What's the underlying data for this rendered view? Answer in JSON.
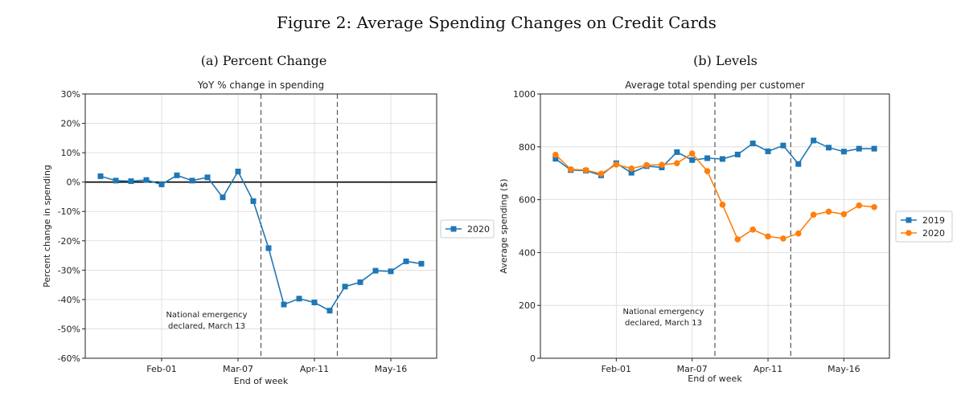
{
  "figure_title": "Figure 2: Average Spending Changes on Credit Cards",
  "chart_data": [
    {
      "caption": "(a) Percent Change",
      "type": "line",
      "title": "YoY % change in spending",
      "xlabel": "End of week",
      "ylabel": "Percent change in spending",
      "ylim": [
        -60,
        30
      ],
      "yticks": [
        -60,
        -50,
        -40,
        -30,
        -20,
        -10,
        0,
        10,
        20,
        30
      ],
      "ytick_labels": [
        "-60%",
        "-50%",
        "-40%",
        "-30%",
        "-20%",
        "-10%",
        "0%",
        "10%",
        "20%",
        "30%"
      ],
      "xticks": [
        "Feb-01",
        "Mar-07",
        "Apr-11",
        "May-16"
      ],
      "grid": true,
      "legend": "right",
      "annotation": [
        "National emergency",
        "declared, March 13"
      ],
      "series": [
        {
          "name": "2020",
          "color": "#1f77b4",
          "marker": "square",
          "x": [
            "Jan-04",
            "Jan-11",
            "Jan-18",
            "Jan-25",
            "Feb-01",
            "Feb-08",
            "Feb-15",
            "Feb-22",
            "Feb-29",
            "Mar-07",
            "Mar-14",
            "Mar-21",
            "Mar-28",
            "Apr-04",
            "Apr-11",
            "Apr-18",
            "Apr-25",
            "May-02",
            "May-09",
            "May-16",
            "May-23",
            "May-30"
          ],
          "values": [
            2.0,
            0.5,
            0.3,
            0.7,
            -0.8,
            2.3,
            0.5,
            1.6,
            -5.2,
            3.6,
            -6.5,
            -22.5,
            -41.7,
            -39.7,
            -41.0,
            -43.8,
            -35.6,
            -34.1,
            -30.2,
            -30.4,
            -27.0,
            -27.8
          ]
        }
      ]
    },
    {
      "caption": "(b) Levels",
      "type": "line",
      "title": "Average total spending per customer",
      "xlabel": "End of week",
      "ylabel": "Average spending ($)",
      "ylim": [
        0,
        1000
      ],
      "yticks": [
        0,
        200,
        400,
        600,
        800,
        1000
      ],
      "ytick_labels": [
        "0",
        "200",
        "400",
        "600",
        "800",
        "1000"
      ],
      "xticks": [
        "Feb-01",
        "Mar-07",
        "Apr-11",
        "May-16"
      ],
      "grid": true,
      "legend": "right",
      "annotation": [
        "National emergency",
        "declared, March 13"
      ],
      "series": [
        {
          "name": "2019",
          "color": "#1f77b4",
          "marker": "square",
          "x": [
            "Jan-04",
            "Jan-11",
            "Jan-18",
            "Jan-25",
            "Feb-01",
            "Feb-08",
            "Feb-15",
            "Feb-22",
            "Feb-29",
            "Mar-07",
            "Mar-14",
            "Mar-21",
            "Mar-28",
            "Apr-04",
            "Apr-11",
            "Apr-18",
            "Apr-25",
            "May-02",
            "May-09",
            "May-16",
            "May-23",
            "May-30"
          ],
          "values": [
            755,
            712,
            710,
            692,
            738,
            702,
            727,
            722,
            780,
            750,
            757,
            754,
            771,
            813,
            783,
            805,
            735,
            824,
            797,
            782,
            793,
            793
          ]
        },
        {
          "name": "2020",
          "color": "#ff7f0e",
          "marker": "circle",
          "x": [
            "Jan-04",
            "Jan-11",
            "Jan-18",
            "Jan-25",
            "Feb-01",
            "Feb-08",
            "Feb-15",
            "Feb-22",
            "Feb-29",
            "Mar-07",
            "Mar-14",
            "Mar-21",
            "Mar-28",
            "Apr-04",
            "Apr-11",
            "Apr-18",
            "Apr-25",
            "May-02",
            "May-09",
            "May-16",
            "May-23",
            "May-30"
          ],
          "values": [
            770,
            715,
            712,
            698,
            733,
            718,
            731,
            732,
            738,
            775,
            708,
            581,
            450,
            487,
            461,
            453,
            472,
            543,
            555,
            545,
            578,
            572
          ]
        }
      ]
    }
  ]
}
